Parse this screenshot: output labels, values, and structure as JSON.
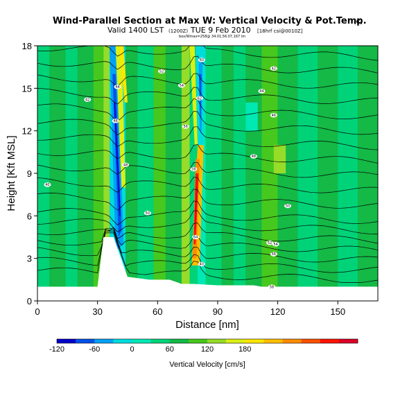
{
  "chart_data": {
    "type": "heatmap",
    "title": "Wind-Parallel Section at Max W: Vertical Velocity & Pot.Temp.",
    "title_mark": "(C)",
    "subtitle": "Valid 1400 LST",
    "subtitle_detail": "(1200Z)",
    "subtitle_date": "TUE 9 Feb 2010",
    "subtitle_run": "[18hrf csi@0010Z]",
    "subtitle_small": "box/Wmax=258@ 34.01,56.07,167 lm",
    "xlabel": "Distance [nm]",
    "ylabel": "Height [Kft MSL]",
    "xlim": [
      0,
      170
    ],
    "ylim": [
      0,
      18
    ],
    "xticks": [
      0,
      30,
      60,
      90,
      120,
      150
    ],
    "yticks": [
      0,
      3,
      6,
      9,
      12,
      15,
      18
    ],
    "colorbar": {
      "label": "Vertical Velocity [cm/s]",
      "ticks": [
        -120,
        -60,
        0,
        60,
        120,
        180
      ],
      "colors": [
        "#0000c8",
        "#0050e6",
        "#00a0f5",
        "#00dcdc",
        "#00e8b4",
        "#00d278",
        "#14b946",
        "#46c81e",
        "#96dc28",
        "#dcf014",
        "#ffe600",
        "#ffbe00",
        "#ff8c00",
        "#ff5000",
        "#ff1400",
        "#dc0028"
      ]
    },
    "terrain": [
      [
        0,
        1
      ],
      [
        30,
        1
      ],
      [
        33,
        4.5
      ],
      [
        38,
        4.5
      ],
      [
        45,
        1.7
      ],
      [
        56,
        1.5
      ],
      [
        66,
        1.5
      ],
      [
        72,
        1.2
      ],
      [
        78,
        1.2
      ],
      [
        90,
        1.1
      ],
      [
        108,
        1.1
      ],
      [
        112,
        1.0
      ],
      [
        140,
        1.0
      ],
      [
        147,
        1.0
      ],
      [
        170,
        1.0
      ]
    ],
    "features": [
      {
        "name": "updraft-core",
        "center_x": 78,
        "max_cm_s": 258,
        "height_range_kft": [
          2.5,
          11
        ]
      },
      {
        "name": "downdraft-band",
        "center_x": 39,
        "min_cm_s": -120,
        "height_range_kft": [
          3.5,
          16
        ]
      },
      {
        "name": "downdraft-upper",
        "center_x": 82,
        "min_cm_s": -90,
        "height_range_kft": [
          11,
          18
        ]
      }
    ],
    "isentrope_labels": [
      "40",
      "42",
      "44",
      "46",
      "48",
      "50",
      "52",
      "54",
      "56",
      "58",
      "60",
      "62",
      "64"
    ]
  }
}
